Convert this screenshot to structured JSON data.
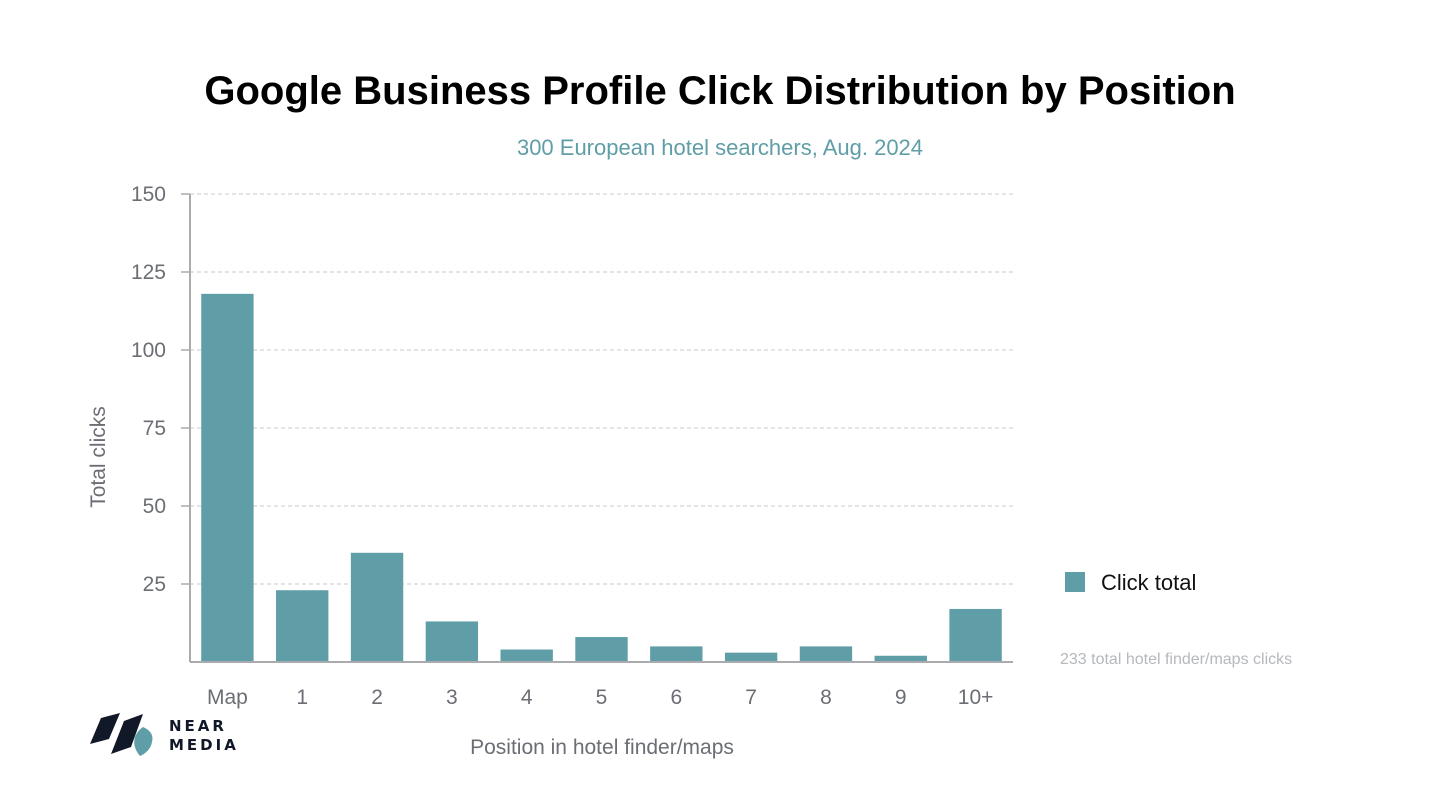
{
  "chart_data": {
    "type": "bar",
    "title": "Google Business Profile Click Distribution by Position",
    "subtitle": "300 European hotel searchers, Aug. 2024",
    "xlabel": "Position in hotel finder/maps",
    "ylabel": "Total clicks",
    "categories": [
      "Map",
      "1",
      "2",
      "3",
      "4",
      "5",
      "6",
      "7",
      "8",
      "9",
      "10+"
    ],
    "series": [
      {
        "name": "Click total",
        "values": [
          118,
          23,
          35,
          13,
          4,
          8,
          5,
          3,
          5,
          2,
          17
        ]
      }
    ],
    "ylim": [
      0,
      150
    ],
    "yticks": [
      25,
      50,
      75,
      100,
      125,
      150
    ],
    "grid": true,
    "legend_position": "right",
    "annotation": "233 total hotel finder/maps clicks"
  },
  "logo": {
    "line1": "NEAR",
    "line2": "MEDIA"
  },
  "colors": {
    "bar": "#5f9ea6",
    "subtitle": "#5f9ea6",
    "grid": "#c6c8cb",
    "axis": "#a9abaf",
    "logo_dark": "#111827",
    "logo_accent": "#5f9ea6"
  }
}
